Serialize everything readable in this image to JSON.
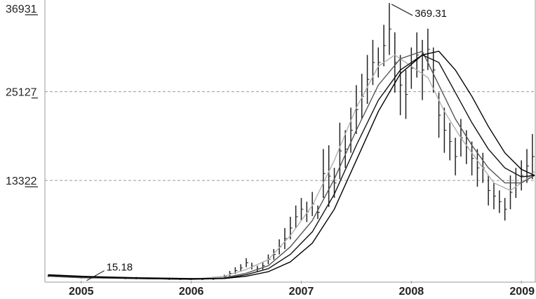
{
  "chart_data": {
    "type": "line",
    "title": "",
    "xlabel": "",
    "ylabel": "",
    "grid": "horizontal dashed",
    "xlim": [
      2004.67,
      2009.12
    ],
    "ylim": [
      0,
      369.31
    ],
    "y_ticks": [
      {
        "value": 133.22,
        "label": "13322",
        "underline_digits": 2
      },
      {
        "value": 251.27,
        "label": "25127",
        "underline_digits": 1
      },
      {
        "value": 369.31,
        "label": "36931",
        "underline_digits": 2
      }
    ],
    "x_ticks": [
      "2005",
      "2006",
      "2007",
      "2008",
      "2009"
    ],
    "x_tick_values": [
      2005.0,
      2006.0,
      2007.0,
      2008.0,
      2009.0
    ],
    "annotations": [
      {
        "text": "369.31",
        "x": 2007.82,
        "y": 369.31
      },
      {
        "text": "15.18",
        "x": 2005.05,
        "y": 15.18
      }
    ],
    "price_bars": [
      {
        "x": 2004.7,
        "high": 8,
        "low": 5
      },
      {
        "x": 2004.8,
        "high": 8,
        "low": 5
      },
      {
        "x": 2004.9,
        "high": 7,
        "low": 4
      },
      {
        "x": 2005.0,
        "high": 6,
        "low": 3
      },
      {
        "x": 2005.1,
        "high": 6,
        "low": 3
      },
      {
        "x": 2005.2,
        "high": 5,
        "low": 3
      },
      {
        "x": 2005.3,
        "high": 5,
        "low": 3
      },
      {
        "x": 2005.4,
        "high": 5,
        "low": 2
      },
      {
        "x": 2005.5,
        "high": 5,
        "low": 2
      },
      {
        "x": 2005.6,
        "high": 4,
        "low": 2
      },
      {
        "x": 2005.7,
        "high": 4,
        "low": 2
      },
      {
        "x": 2005.8,
        "high": 4,
        "low": 1
      },
      {
        "x": 2005.9,
        "high": 3,
        "low": 1
      },
      {
        "x": 2006.0,
        "high": 3,
        "low": 1
      },
      {
        "x": 2006.1,
        "high": 3,
        "low": 1
      },
      {
        "x": 2006.2,
        "high": 4,
        "low": 1
      },
      {
        "x": 2006.3,
        "high": 8,
        "low": 3
      },
      {
        "x": 2006.35,
        "high": 13,
        "low": 6
      },
      {
        "x": 2006.4,
        "high": 18,
        "low": 9
      },
      {
        "x": 2006.45,
        "high": 22,
        "low": 12
      },
      {
        "x": 2006.5,
        "high": 30,
        "low": 18
      },
      {
        "x": 2006.55,
        "high": 24,
        "low": 15
      },
      {
        "x": 2006.6,
        "high": 20,
        "low": 12
      },
      {
        "x": 2006.65,
        "high": 25,
        "low": 15
      },
      {
        "x": 2006.7,
        "high": 35,
        "low": 22
      },
      {
        "x": 2006.75,
        "high": 42,
        "low": 28
      },
      {
        "x": 2006.8,
        "high": 55,
        "low": 35
      },
      {
        "x": 2006.85,
        "high": 70,
        "low": 42
      },
      {
        "x": 2006.9,
        "high": 85,
        "low": 55
      },
      {
        "x": 2006.95,
        "high": 100,
        "low": 70
      },
      {
        "x": 2007.0,
        "high": 110,
        "low": 80
      },
      {
        "x": 2007.05,
        "high": 105,
        "low": 78
      },
      {
        "x": 2007.1,
        "high": 118,
        "low": 86
      },
      {
        "x": 2007.15,
        "high": 100,
        "low": 82
      },
      {
        "x": 2007.2,
        "high": 175,
        "low": 110
      },
      {
        "x": 2007.25,
        "high": 180,
        "low": 98
      },
      {
        "x": 2007.3,
        "high": 150,
        "low": 110
      },
      {
        "x": 2007.35,
        "high": 210,
        "low": 135
      },
      {
        "x": 2007.4,
        "high": 200,
        "low": 150
      },
      {
        "x": 2007.45,
        "high": 230,
        "low": 170
      },
      {
        "x": 2007.5,
        "high": 260,
        "low": 195
      },
      {
        "x": 2007.55,
        "high": 275,
        "low": 215
      },
      {
        "x": 2007.6,
        "high": 300,
        "low": 235
      },
      {
        "x": 2007.65,
        "high": 320,
        "low": 260
      },
      {
        "x": 2007.7,
        "high": 310,
        "low": 270
      },
      {
        "x": 2007.75,
        "high": 340,
        "low": 285
      },
      {
        "x": 2007.8,
        "high": 369,
        "low": 300
      },
      {
        "x": 2007.85,
        "high": 330,
        "low": 250
      },
      {
        "x": 2007.9,
        "high": 300,
        "low": 220
      },
      {
        "x": 2007.95,
        "high": 280,
        "low": 215
      },
      {
        "x": 2008.0,
        "high": 310,
        "low": 255
      },
      {
        "x": 2008.05,
        "high": 330,
        "low": 270
      },
      {
        "x": 2008.1,
        "high": 320,
        "low": 240
      },
      {
        "x": 2008.15,
        "high": 335,
        "low": 280
      },
      {
        "x": 2008.2,
        "high": 310,
        "low": 250
      },
      {
        "x": 2008.25,
        "high": 250,
        "low": 190
      },
      {
        "x": 2008.3,
        "high": 230,
        "low": 170
      },
      {
        "x": 2008.35,
        "high": 210,
        "low": 160
      },
      {
        "x": 2008.4,
        "high": 190,
        "low": 140
      },
      {
        "x": 2008.45,
        "high": 215,
        "low": 165
      },
      {
        "x": 2008.5,
        "high": 200,
        "low": 155
      },
      {
        "x": 2008.55,
        "high": 185,
        "low": 140
      },
      {
        "x": 2008.6,
        "high": 175,
        "low": 125
      },
      {
        "x": 2008.65,
        "high": 170,
        "low": 130
      },
      {
        "x": 2008.7,
        "high": 140,
        "low": 100
      },
      {
        "x": 2008.75,
        "high": 130,
        "low": 95
      },
      {
        "x": 2008.8,
        "high": 120,
        "low": 90
      },
      {
        "x": 2008.85,
        "high": 110,
        "low": 80
      },
      {
        "x": 2008.9,
        "high": 140,
        "low": 95
      },
      {
        "x": 2008.95,
        "high": 150,
        "low": 110
      },
      {
        "x": 2009.0,
        "high": 160,
        "low": 120
      },
      {
        "x": 2009.05,
        "high": 175,
        "low": 130
      },
      {
        "x": 2009.1,
        "high": 195,
        "low": 135
      }
    ],
    "series": [
      {
        "color": "#b0b0b0",
        "x": [
          2004.7,
          2005.0,
          2005.5,
          2006.0,
          2006.3,
          2006.5,
          2006.7,
          2006.9,
          2007.1,
          2007.3,
          2007.5,
          2007.7,
          2007.85,
          2008.0,
          2008.15,
          2008.3,
          2008.45,
          2008.6,
          2008.75,
          2008.9,
          2009.05,
          2009.12
        ],
        "values": [
          6,
          4,
          3,
          2,
          6,
          15,
          28,
          60,
          100,
          160,
          230,
          285,
          300,
          285,
          270,
          225,
          190,
          160,
          130,
          120,
          135,
          145
        ]
      },
      {
        "color": "#555555",
        "x": [
          2004.7,
          2005.0,
          2005.5,
          2006.0,
          2006.3,
          2006.5,
          2006.7,
          2006.9,
          2007.1,
          2007.3,
          2007.5,
          2007.7,
          2007.9,
          2008.1,
          2008.25,
          2008.4,
          2008.55,
          2008.7,
          2008.85,
          2009.0,
          2009.12
        ],
        "values": [
          6,
          4,
          3,
          2,
          4,
          10,
          20,
          45,
          80,
          135,
          200,
          260,
          295,
          305,
          260,
          215,
          180,
          150,
          130,
          130,
          140
        ]
      },
      {
        "color": "#111111",
        "x": [
          2004.7,
          2005.0,
          2005.5,
          2006.0,
          2006.3,
          2006.5,
          2006.7,
          2006.9,
          2007.1,
          2007.3,
          2007.5,
          2007.7,
          2007.9,
          2008.1,
          2008.25,
          2008.4,
          2008.55,
          2008.7,
          2008.85,
          2009.0,
          2009.12
        ],
        "values": [
          7,
          5,
          3,
          2,
          3,
          8,
          16,
          35,
          65,
          115,
          180,
          240,
          280,
          300,
          290,
          250,
          210,
          175,
          150,
          138,
          140
        ]
      },
      {
        "color": "#000000",
        "x": [
          2004.7,
          2005.0,
          2005.5,
          2006.0,
          2006.3,
          2006.5,
          2006.7,
          2006.9,
          2007.1,
          2007.3,
          2007.5,
          2007.7,
          2007.9,
          2008.1,
          2008.25,
          2008.4,
          2008.55,
          2008.7,
          2008.85,
          2009.0,
          2009.12
        ],
        "values": [
          8,
          6,
          4,
          3,
          3,
          6,
          12,
          25,
          50,
          95,
          160,
          225,
          275,
          300,
          305,
          280,
          245,
          205,
          170,
          148,
          140
        ]
      }
    ]
  }
}
